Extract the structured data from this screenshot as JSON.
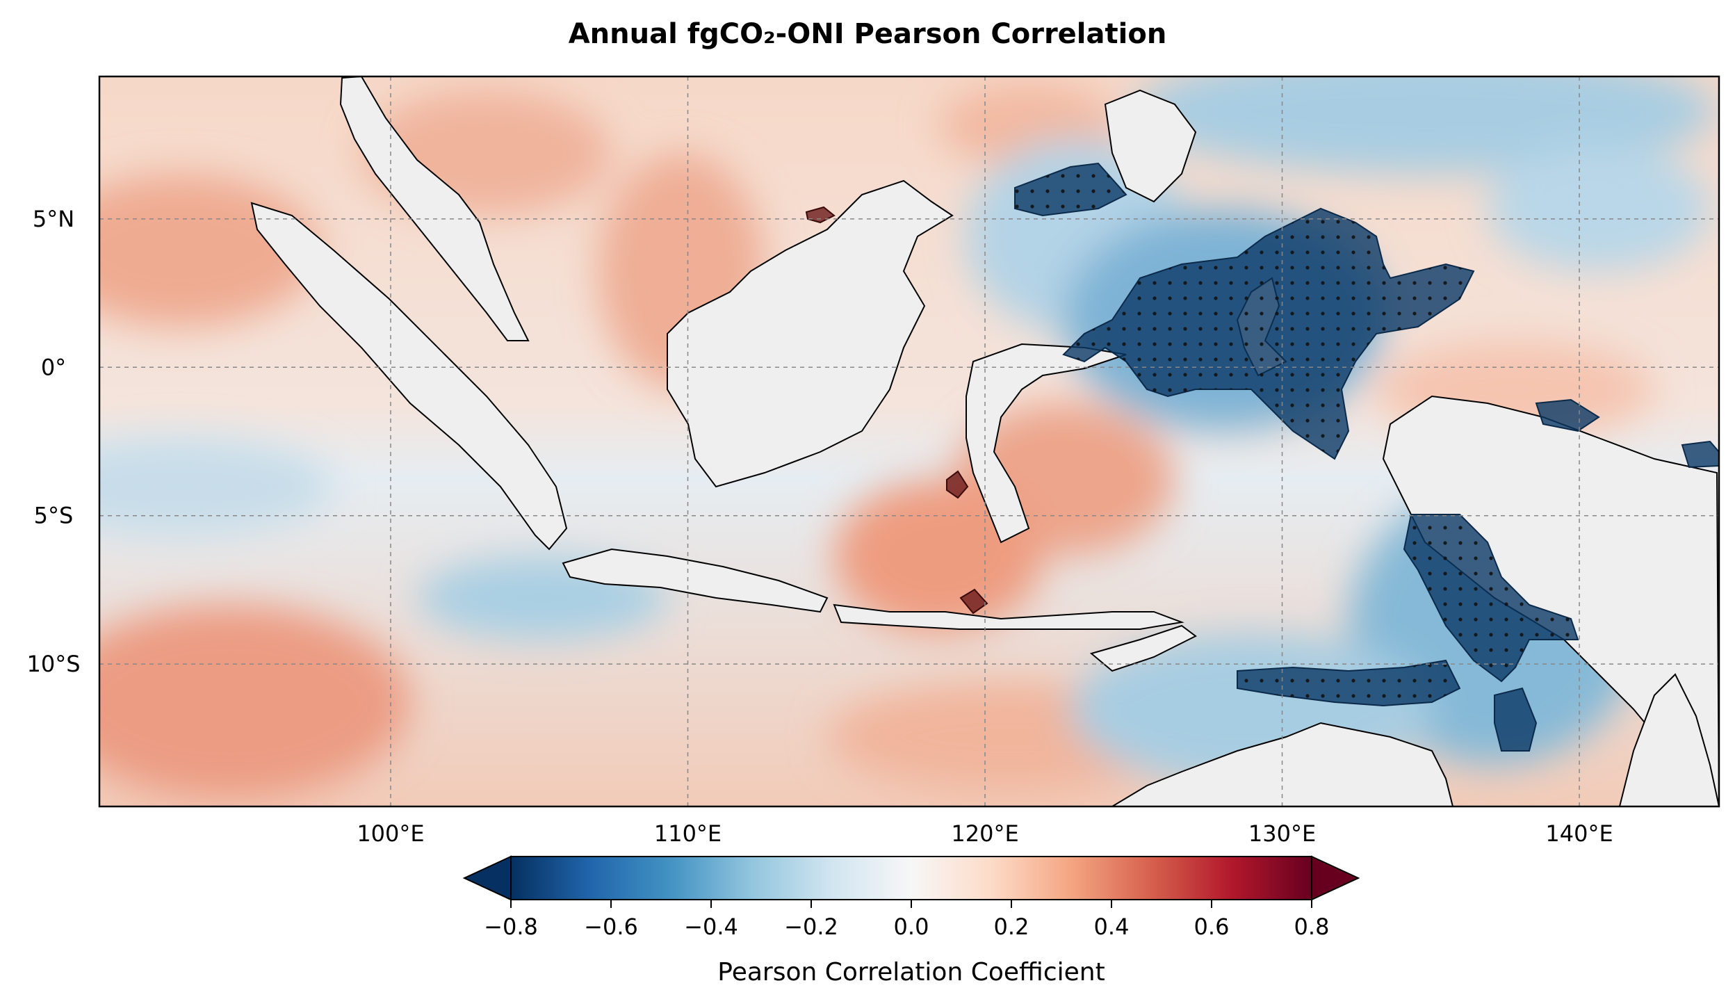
{
  "title": "Annual fgCO₂-ONI Pearson Correlation",
  "map": {
    "lon_range": [
      90.2,
      144.7
    ],
    "lat_range": [
      -14.8,
      9.8
    ],
    "lon_ticks": [
      {
        "value": 100,
        "label": "100°E"
      },
      {
        "value": 110,
        "label": "110°E"
      },
      {
        "value": 120,
        "label": "120°E"
      },
      {
        "value": 130,
        "label": "130°E"
      },
      {
        "value": 140,
        "label": "140°E"
      }
    ],
    "lat_ticks": [
      {
        "value": 5,
        "label": "5°N"
      },
      {
        "value": 0,
        "label": "0°"
      },
      {
        "value": -5,
        "label": "5°S"
      },
      {
        "value": -10,
        "label": "10°S"
      }
    ],
    "gridlines": true,
    "land_color": "#efefef",
    "significance_marker": "stippling over dark-shaded areas"
  },
  "colorbar": {
    "label": "Pearson Correlation Coefficient",
    "range": [
      -0.8,
      0.8
    ],
    "ticks": [
      {
        "value": -0.8,
        "label": "−0.8"
      },
      {
        "value": -0.6,
        "label": "−0.6"
      },
      {
        "value": -0.4,
        "label": "−0.4"
      },
      {
        "value": -0.2,
        "label": "−0.2"
      },
      {
        "value": 0.0,
        "label": "0.0"
      },
      {
        "value": 0.2,
        "label": "0.2"
      },
      {
        "value": 0.4,
        "label": "0.4"
      },
      {
        "value": 0.6,
        "label": "0.6"
      },
      {
        "value": 0.8,
        "label": "0.8"
      }
    ],
    "colormap": "RdBu_r",
    "extend": "both",
    "colors": [
      "#053061",
      "#2166ac",
      "#4393c3",
      "#92c5de",
      "#d1e5f0",
      "#f7f7f7",
      "#fddbc7",
      "#f4a582",
      "#d6604d",
      "#b2182b",
      "#67001f"
    ]
  }
}
